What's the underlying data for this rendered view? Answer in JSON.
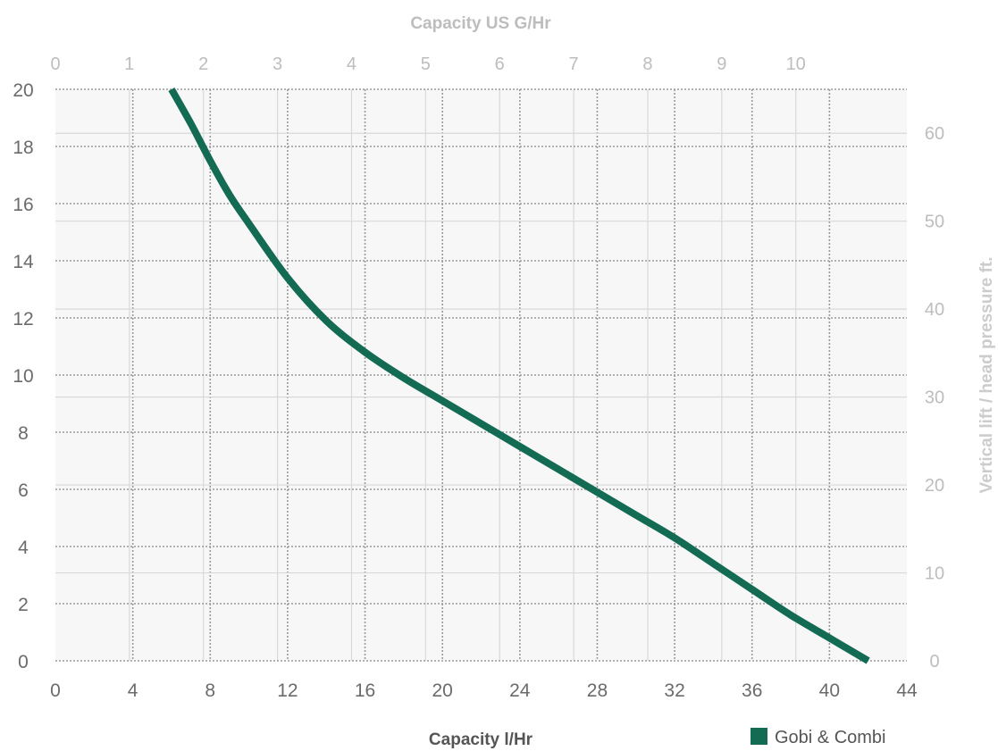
{
  "chart_data": {
    "type": "line",
    "xlabel": "Capacity l/Hr",
    "x2label": "Capacity US G/Hr",
    "ylabel": "",
    "y2label": "Vertical lift / head pressure ft.",
    "xlim": [
      0,
      44
    ],
    "ylim": [
      0,
      20
    ],
    "x2lim": [
      0,
      11.5
    ],
    "y2lim": [
      0,
      65
    ],
    "x_ticks": [
      "0",
      "4",
      "8",
      "12",
      "16",
      "20",
      "24",
      "28",
      "32",
      "36",
      "40",
      "44"
    ],
    "y_ticks": [
      "0",
      "2",
      "4",
      "6",
      "8",
      "10",
      "12",
      "14",
      "16",
      "18",
      "20"
    ],
    "x2_ticks": [
      "0",
      "1",
      "2",
      "3",
      "4",
      "5",
      "6",
      "7",
      "8",
      "9",
      "10"
    ],
    "y2_ticks": [
      "0",
      "10",
      "20",
      "30",
      "40",
      "50",
      "60"
    ],
    "grid": true,
    "legend": "bottom-right",
    "series": [
      {
        "name": "Gobi & Combi",
        "color": "#136b53",
        "x": [
          6,
          7,
          8,
          9,
          10,
          12,
          14,
          16,
          18,
          20,
          22,
          24,
          26,
          28,
          30,
          32,
          34,
          36,
          38,
          40,
          42
        ],
        "y": [
          20,
          18.8,
          17.5,
          16.3,
          15.3,
          13.4,
          11.9,
          10.8,
          9.9,
          9.1,
          8.3,
          7.5,
          6.7,
          5.9,
          5.1,
          4.3,
          3.4,
          2.5,
          1.6,
          0.8,
          0
        ]
      }
    ]
  }
}
